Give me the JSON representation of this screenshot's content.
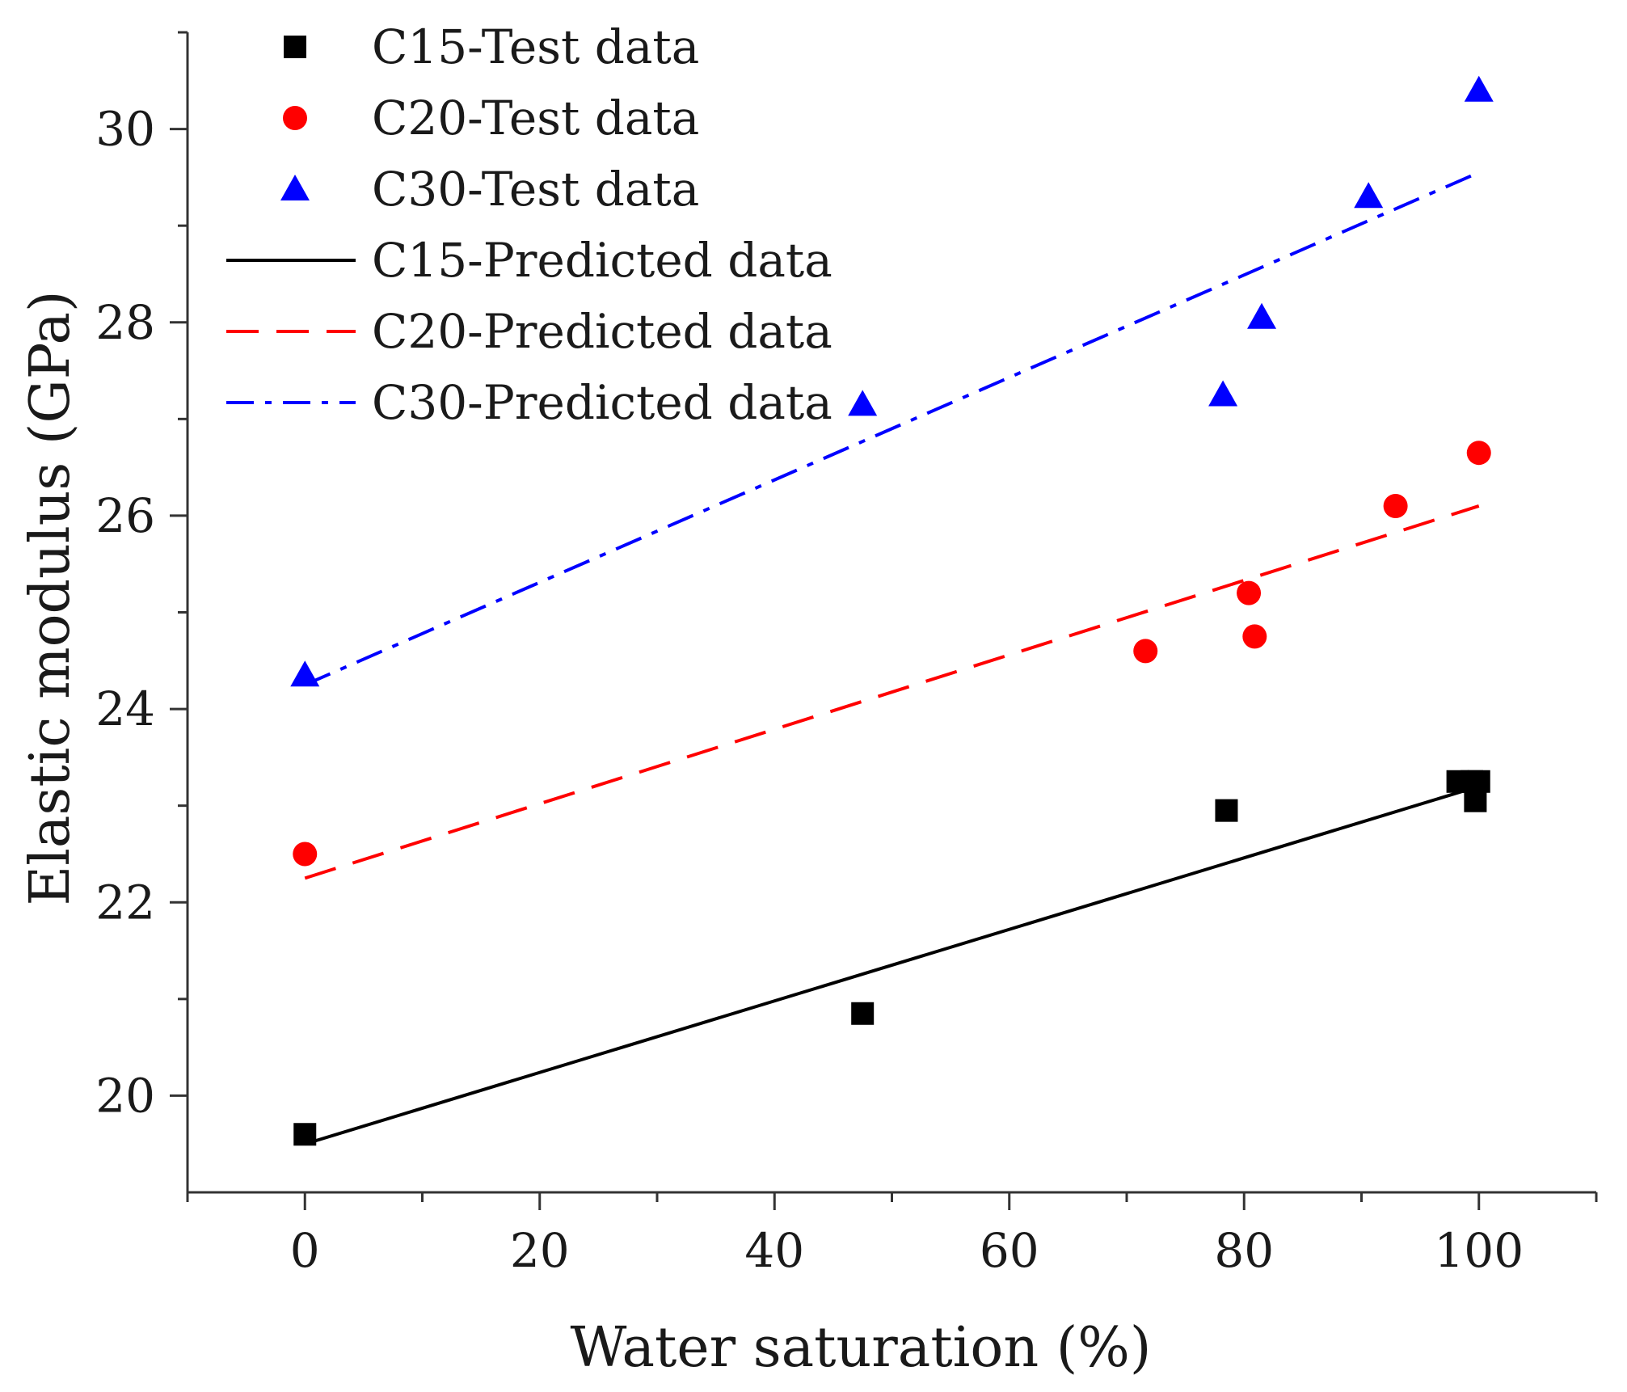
{
  "chart_data": {
    "type": "scatter",
    "xlabel": "Water saturation (%)",
    "ylabel": "Elastic modulus (GPa)",
    "xlim": [
      -10,
      110
    ],
    "ylim": [
      19,
      31
    ],
    "x_ticks": [
      0,
      20,
      40,
      60,
      80,
      100
    ],
    "x_tick_labels": [
      "0",
      "20",
      "40",
      "60",
      "80",
      "100"
    ],
    "x_minor_ticks": [
      -10,
      10,
      30,
      50,
      70,
      90,
      110
    ],
    "y_ticks": [
      20,
      22,
      24,
      26,
      28,
      30
    ],
    "y_tick_labels": [
      "20",
      "22",
      "24",
      "26",
      "28",
      "30"
    ],
    "y_minor_ticks": [
      21,
      23,
      25,
      27,
      29,
      31
    ],
    "grid": false,
    "legend_position": "top-left",
    "series": [
      {
        "name": "C15-Test data",
        "kind": "scatter",
        "marker": "square",
        "color": "#000000",
        "x": [
          0,
          47.5,
          78.5,
          98.2,
          99.4,
          99.7,
          100
        ],
        "y": [
          19.6,
          20.85,
          22.95,
          23.25,
          23.25,
          23.05,
          23.25
        ]
      },
      {
        "name": "C20-Test data",
        "kind": "scatter",
        "marker": "circle",
        "color": "#ff0000",
        "x": [
          0,
          71.6,
          80.4,
          80.9,
          92.9,
          100
        ],
        "y": [
          22.5,
          24.6,
          25.2,
          24.75,
          26.1,
          26.65
        ]
      },
      {
        "name": "C30-Test data",
        "kind": "scatter",
        "marker": "triangle",
        "color": "#0000ff",
        "x": [
          0,
          47.5,
          78.2,
          81.5,
          90.6,
          100
        ],
        "y": [
          24.35,
          27.15,
          27.25,
          28.05,
          29.3,
          30.4
        ]
      },
      {
        "name": "C15-Predicted data",
        "kind": "line",
        "dash": "solid",
        "color": "#000000",
        "x": [
          0,
          100
        ],
        "y": [
          19.5,
          23.2
        ]
      },
      {
        "name": "C20-Predicted data",
        "kind": "line",
        "dash": "dashed",
        "color": "#ff0000",
        "x": [
          0,
          100
        ],
        "y": [
          22.25,
          26.1
        ]
      },
      {
        "name": "C30-Predicted data",
        "kind": "line",
        "dash": "dashdot",
        "color": "#0000ff",
        "x": [
          0,
          100
        ],
        "y": [
          24.25,
          29.55
        ]
      }
    ]
  }
}
